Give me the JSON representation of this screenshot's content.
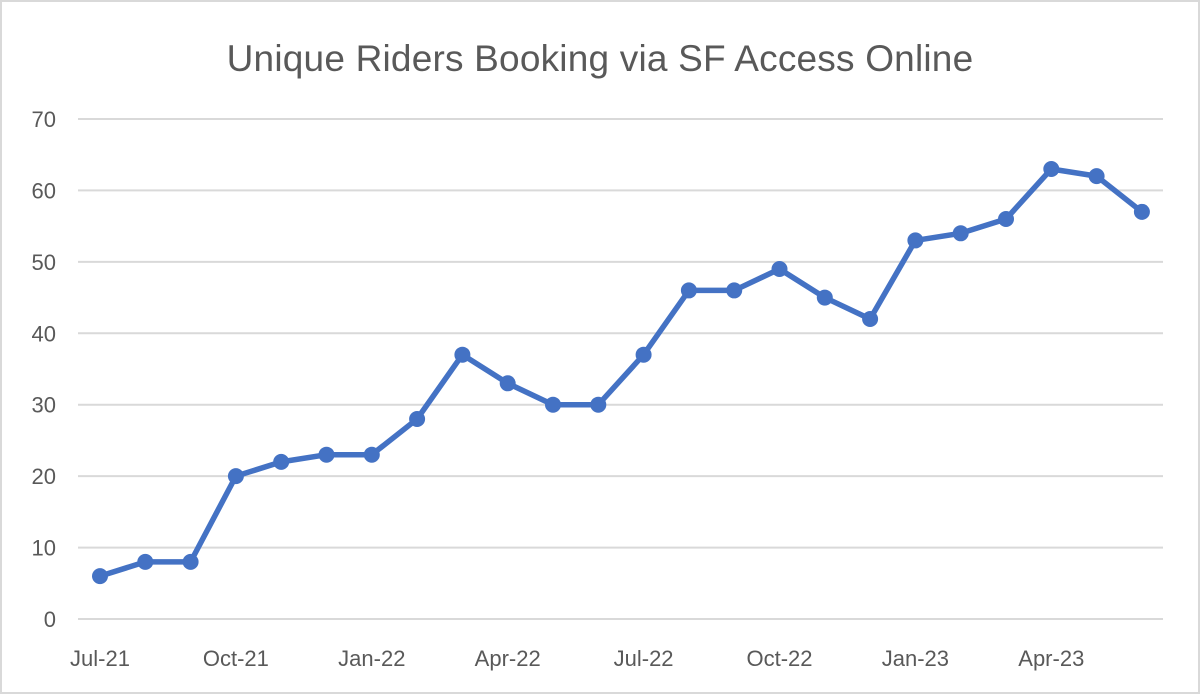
{
  "chart_data": {
    "type": "line",
    "title": "Unique Riders Booking via SF Access Online",
    "xlabel": "",
    "ylabel": "",
    "ylim": [
      0,
      70
    ],
    "y_ticks": [
      0,
      10,
      20,
      30,
      40,
      50,
      60,
      70
    ],
    "x_tick_labels": [
      "Jul-21",
      "Oct-21",
      "Jan-22",
      "Apr-22",
      "Jul-22",
      "Oct-22",
      "Jan-23",
      "Apr-23"
    ],
    "categories": [
      "Jul-21",
      "Aug-21",
      "Sep-21",
      "Oct-21",
      "Nov-21",
      "Dec-21",
      "Jan-22",
      "Feb-22",
      "Mar-22",
      "Apr-22",
      "May-22",
      "Jun-22",
      "Jul-22",
      "Aug-22",
      "Sep-22",
      "Oct-22",
      "Nov-22",
      "Dec-22",
      "Jan-23",
      "Feb-23",
      "Mar-23",
      "Apr-23",
      "May-23",
      "Jun-23"
    ],
    "series": [
      {
        "name": "Unique Riders",
        "color": "#4472c4",
        "values": [
          6,
          8,
          8,
          20,
          22,
          23,
          23,
          28,
          37,
          33,
          30,
          30,
          37,
          46,
          46,
          49,
          45,
          42,
          53,
          54,
          56,
          63,
          62,
          57
        ]
      }
    ],
    "grid": true,
    "legend": "none"
  },
  "colors": {
    "line": "#4472c4",
    "grid": "#d9d9d9",
    "text": "#595959",
    "border": "#d9d9d9"
  }
}
